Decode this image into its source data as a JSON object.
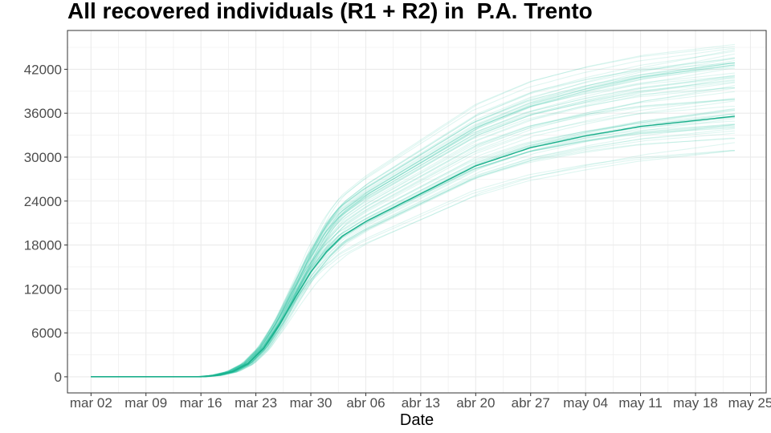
{
  "chart_data": {
    "type": "line",
    "title": "All recovered individuals (R1 + R2) in  P.A. Trento",
    "xlabel": "Date",
    "ylabel": "",
    "x_tick_labels": [
      "mar 02",
      "mar 09",
      "mar 16",
      "mar 23",
      "mar 30",
      "abr 06",
      "abr 13",
      "abr 20",
      "abr 27",
      "may 04",
      "may 11",
      "may 18",
      "may 25"
    ],
    "y_ticks": [
      0,
      6000,
      12000,
      18000,
      24000,
      30000,
      36000,
      42000
    ],
    "ylim": [
      -2200,
      47300
    ],
    "xlim_days_from_mar02": [
      -3,
      86
    ],
    "grid": true,
    "colors": {
      "main": "#1aaf8b",
      "ensemble": "#1abc9c",
      "grid": "#ebebeb",
      "panel_border": "#333333"
    },
    "main_series": {
      "name": "",
      "dates": [
        "mar 02",
        "mar 09",
        "mar 16",
        "mar 18",
        "mar 20",
        "mar 22",
        "mar 24",
        "mar 26",
        "mar 28",
        "mar 30",
        "apr 01",
        "apr 03",
        "apr 06",
        "apr 13",
        "apr 20",
        "apr 27",
        "may 04",
        "may 11",
        "may 18",
        "may 23"
      ],
      "values": [
        0,
        0,
        0,
        200,
        700,
        1800,
        3900,
        7100,
        10800,
        14300,
        17100,
        19200,
        21200,
        25000,
        28800,
        31300,
        32900,
        34200,
        35000,
        35600
      ]
    },
    "ensemble": {
      "count": 70,
      "final_value_range": [
        30800,
        45500
      ]
    }
  }
}
